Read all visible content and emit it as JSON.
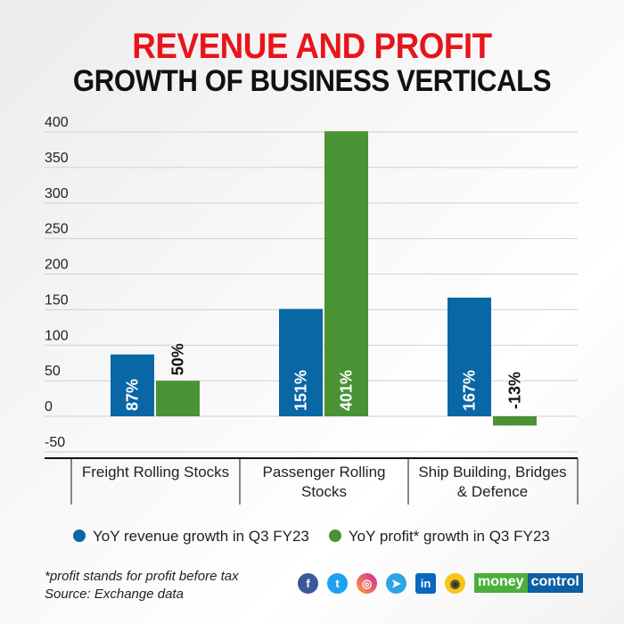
{
  "title_line1": "REVENUE AND PROFIT",
  "title_line2": "GROWTH OF BUSINESS VERTICALS",
  "chart_data": {
    "type": "bar",
    "categories": [
      "Freight Rolling Stocks",
      "Passenger Rolling Stocks",
      "Ship Building, Bridges & Defence"
    ],
    "category_lines": [
      [
        "Freight Rolling Stocks"
      ],
      [
        "Passenger Rolling",
        "Stocks"
      ],
      [
        "Ship Building, Bridges",
        "& Defence"
      ]
    ],
    "series": [
      {
        "name": "YoY revenue growth in Q3 FY23",
        "values": [
          87,
          151,
          167
        ],
        "labels": [
          "87%",
          "151%",
          "167%"
        ],
        "color": "#0a67a6"
      },
      {
        "name": "YoY profit* growth in Q3 FY23",
        "values": [
          50,
          401,
          -13
        ],
        "labels": [
          "50%",
          "401%",
          "-13%"
        ],
        "color": "#4a9335"
      }
    ],
    "ylim": [
      -50,
      400
    ],
    "yticks": [
      -50,
      0,
      50,
      100,
      150,
      200,
      250,
      300,
      350,
      400
    ],
    "grid": true,
    "legend_position": "bottom"
  },
  "footnote": "*profit stands for profit before tax",
  "source": "Source: Exchange data",
  "social_icons": [
    "facebook-icon",
    "twitter-icon",
    "instagram-icon",
    "telegram-icon",
    "linkedin-icon",
    "koo-icon"
  ],
  "logo": {
    "part1": "money",
    "part2": "control"
  }
}
